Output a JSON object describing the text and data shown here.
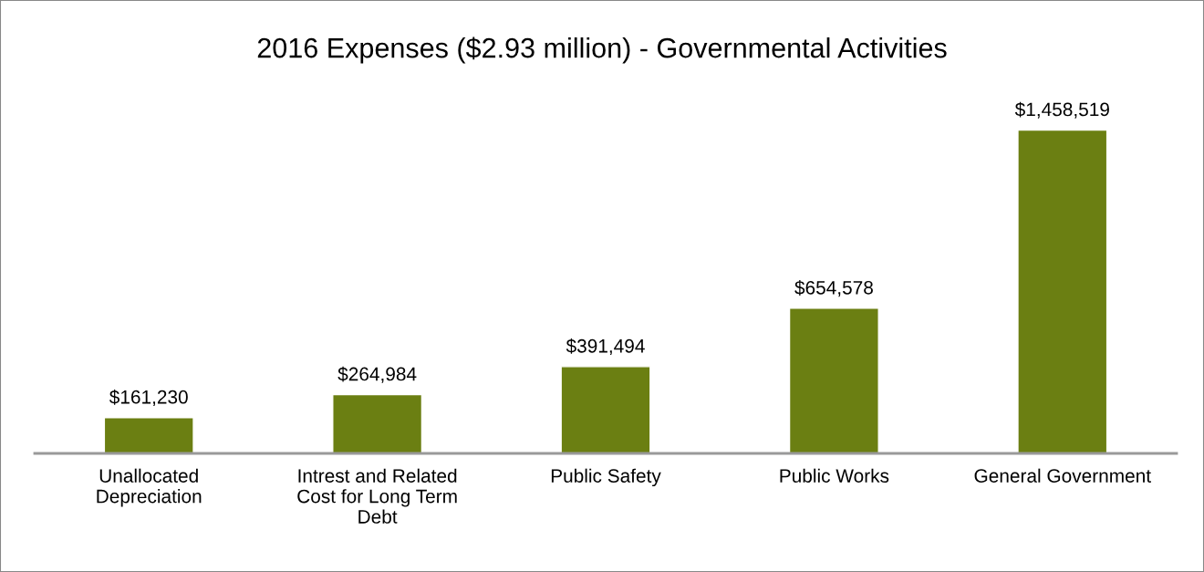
{
  "chart_data": {
    "type": "bar",
    "title": "2016 Expenses ($2.93 million) - Governmental Activities",
    "categories": [
      "Unallocated\nDepreciation",
      "Intrest and Related\nCost for Long Term\nDebt",
      "Public Safety",
      "Public Works",
      "General Government"
    ],
    "values": [
      161230,
      264984,
      391494,
      654578,
      1458519
    ],
    "value_labels": [
      "$161,230",
      "$264,984",
      "$391,494",
      "$654,578",
      "$1,458,519"
    ],
    "color": "#6b7f12",
    "grid": false,
    "legend": false,
    "tick_labels": "x"
  }
}
